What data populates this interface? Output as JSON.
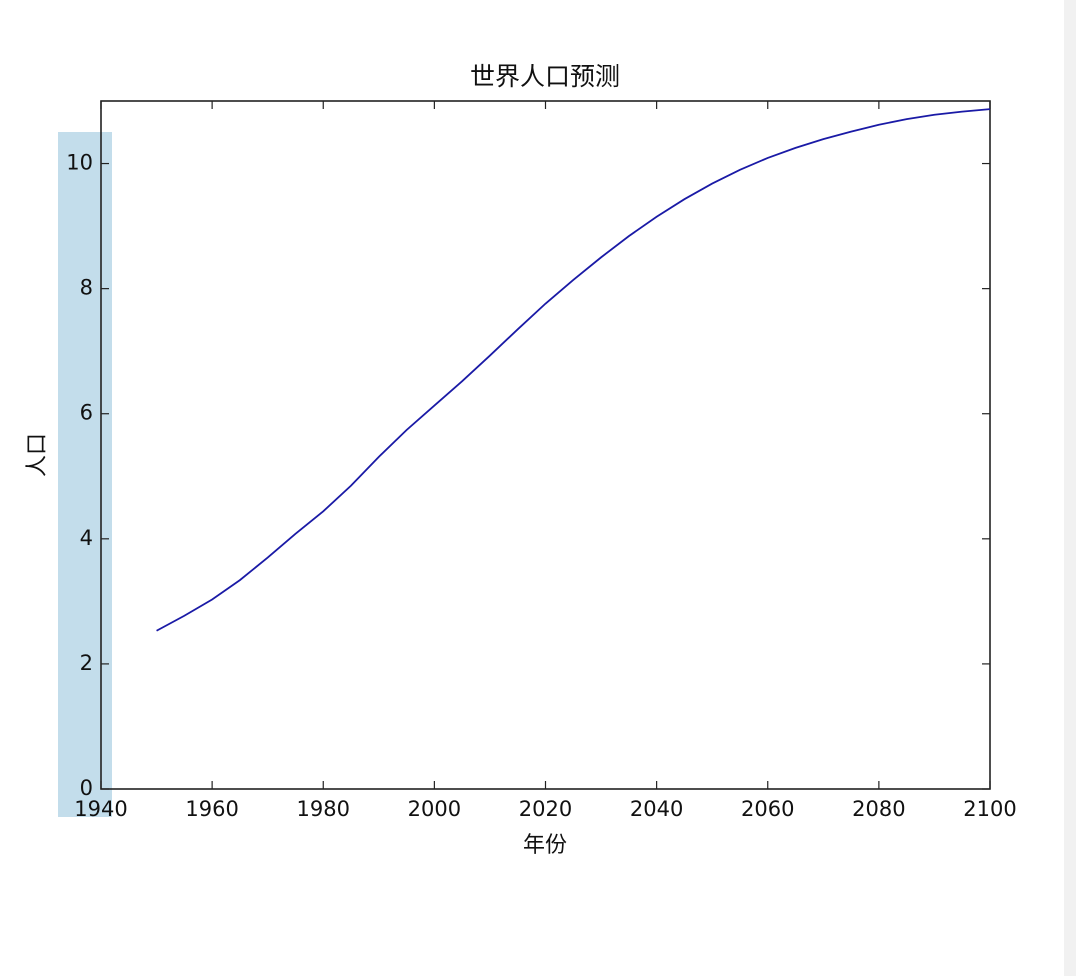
{
  "chart_data": {
    "type": "line",
    "title": "世界人口预测",
    "x_label": "年份",
    "y_label": "人口",
    "x": [
      1950,
      1955,
      1960,
      1965,
      1970,
      1975,
      1980,
      1985,
      1990,
      1995,
      2000,
      2005,
      2010,
      2015,
      2020,
      2025,
      2030,
      2035,
      2040,
      2045,
      2050,
      2055,
      2060,
      2065,
      2070,
      2075,
      2080,
      2085,
      2090,
      2095,
      2100
    ],
    "values": [
      2.53,
      2.77,
      3.03,
      3.34,
      3.7,
      4.08,
      4.44,
      4.85,
      5.31,
      5.74,
      6.13,
      6.52,
      6.93,
      7.35,
      7.76,
      8.14,
      8.5,
      8.84,
      9.15,
      9.43,
      9.68,
      9.9,
      10.09,
      10.25,
      10.39,
      10.51,
      10.62,
      10.71,
      10.78,
      10.83,
      10.87
    ],
    "color": "#1a1aa6",
    "xlim": [
      1940,
      2100
    ],
    "xticks": [
      1940,
      1960,
      1980,
      2000,
      2020,
      2040,
      2060,
      2080,
      2100
    ],
    "ylim": [
      0,
      11
    ],
    "yticks": [
      0,
      2,
      4,
      6,
      8,
      10
    ]
  }
}
